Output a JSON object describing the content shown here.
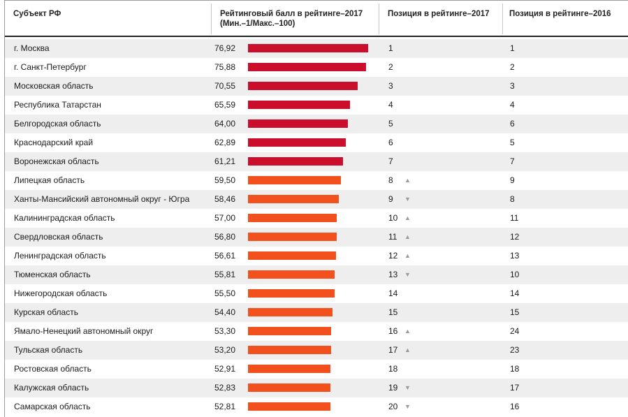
{
  "header": {
    "col_subject": "Субъект РФ",
    "col_score_line1": "Рейтинговый балл в рейтинге–2017",
    "col_score_line2": "(Мин.–1/Макс.–100)",
    "col_pos2017": "Позиция в рейтинге–2017",
    "col_pos2016": "Позиция в рейтинге–2016"
  },
  "colors": {
    "top_group": "#cc0e2d",
    "other_group": "#f2501d",
    "alt_row": "#eeeeee",
    "arrow": "#9a9a9a"
  },
  "chart_data": {
    "type": "table",
    "columns": [
      "Субъект РФ",
      "Рейтинговый балл в рейтинге–2017 (Мин.–1/Макс.–100)",
      "Позиция в рейтинге–2017",
      "Позиция в рейтинге–2016"
    ],
    "score_range": [
      1,
      100
    ],
    "rows": [
      {
        "name": "г. Москва",
        "score": "76,92",
        "score_value": 76.92,
        "pos2017": "1",
        "arrow": "",
        "pos2016": "1",
        "group": "top"
      },
      {
        "name": "г. Санкт-Петербург",
        "score": "75,88",
        "score_value": 75.88,
        "pos2017": "2",
        "arrow": "",
        "pos2016": "2",
        "group": "top"
      },
      {
        "name": "Московская область",
        "score": "70,55",
        "score_value": 70.55,
        "pos2017": "3",
        "arrow": "",
        "pos2016": "3",
        "group": "top"
      },
      {
        "name": "Республика Татарстан",
        "score": "65,59",
        "score_value": 65.59,
        "pos2017": "4",
        "arrow": "",
        "pos2016": "4",
        "group": "top"
      },
      {
        "name": "Белгородская область",
        "score": "64,00",
        "score_value": 64.0,
        "pos2017": "5",
        "arrow": "",
        "pos2016": "6",
        "group": "top"
      },
      {
        "name": "Краснодарский край",
        "score": "62,89",
        "score_value": 62.89,
        "pos2017": "6",
        "arrow": "",
        "pos2016": "5",
        "group": "top"
      },
      {
        "name": "Воронежская область",
        "score": "61,21",
        "score_value": 61.21,
        "pos2017": "7",
        "arrow": "",
        "pos2016": "7",
        "group": "top"
      },
      {
        "name": "Липецкая область",
        "score": "59,50",
        "score_value": 59.5,
        "pos2017": "8",
        "arrow": "▲",
        "pos2016": "9",
        "group": "other"
      },
      {
        "name": "Ханты-Мансийский автономный округ - Югра",
        "score": "58,46",
        "score_value": 58.46,
        "pos2017": "9",
        "arrow": "▼",
        "pos2016": "8",
        "group": "other"
      },
      {
        "name": "Калининградская область",
        "score": "57,00",
        "score_value": 57.0,
        "pos2017": "10",
        "arrow": "▲",
        "pos2016": "11",
        "group": "other"
      },
      {
        "name": "Свердловская область",
        "score": "56,80",
        "score_value": 56.8,
        "pos2017": "11",
        "arrow": "▲",
        "pos2016": "12",
        "group": "other"
      },
      {
        "name": "Ленинградская область",
        "score": "56,61",
        "score_value": 56.61,
        "pos2017": "12",
        "arrow": "▲",
        "pos2016": "13",
        "group": "other"
      },
      {
        "name": "Тюменская область",
        "score": "55,81",
        "score_value": 55.81,
        "pos2017": "13",
        "arrow": "▼",
        "pos2016": "10",
        "group": "other"
      },
      {
        "name": "Нижегородская область",
        "score": "55,50",
        "score_value": 55.5,
        "pos2017": "14",
        "arrow": "",
        "pos2016": "14",
        "group": "other"
      },
      {
        "name": "Курская область",
        "score": "54,40",
        "score_value": 54.4,
        "pos2017": "15",
        "arrow": "",
        "pos2016": "15",
        "group": "other"
      },
      {
        "name": "Ямало-Ненецкий автономный округ",
        "score": "53,30",
        "score_value": 53.3,
        "pos2017": "16",
        "arrow": "▲",
        "pos2016": "24",
        "group": "other"
      },
      {
        "name": "Тульская область",
        "score": "53,20",
        "score_value": 53.2,
        "pos2017": "17",
        "arrow": "▲",
        "pos2016": "23",
        "group": "other"
      },
      {
        "name": "Ростовская область",
        "score": "52,91",
        "score_value": 52.91,
        "pos2017": "18",
        "arrow": "",
        "pos2016": "18",
        "group": "other"
      },
      {
        "name": "Калужская область",
        "score": "52,83",
        "score_value": 52.83,
        "pos2017": "19",
        "arrow": "▼",
        "pos2016": "17",
        "group": "other"
      },
      {
        "name": "Самарская область",
        "score": "52,81",
        "score_value": 52.81,
        "pos2017": "20",
        "arrow": "▼",
        "pos2016": "16",
        "group": "other"
      }
    ]
  }
}
